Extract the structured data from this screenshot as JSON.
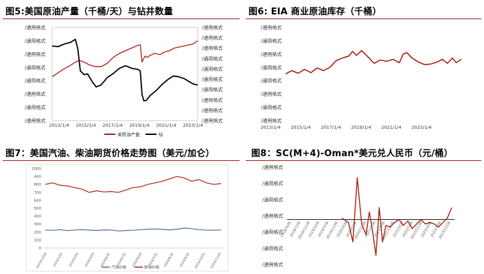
{
  "figures": {
    "fig5_title": "图5:美国原油产量（千桶/天）与钻井数量",
    "fig6_title": "图6: EIA 商业原油库存（千桶）",
    "fig7_title": "图7：美国汽油、柴油期货价格走势图（美元/加仑）",
    "fig8_title": "图8：SC(M+4)-Oman*美元兑人民币（元/桶）"
  },
  "colors": {
    "red": "#a81f0f",
    "black": "#000000",
    "blue": "#4a6d9a",
    "rule": "#9a1a1a"
  },
  "chart_data": [
    {
      "id": "fig5",
      "type": "line",
      "title": "图5:美国原油产量（千桶/天）与钻井数量",
      "x_ticks": [
        "2013/1/4",
        "2015/1/4",
        "2017/1/4",
        "2019/1/4",
        "2021/1/4",
        "2023/1/4"
      ],
      "left_tick_labels": [
        "/通用格式",
        "/通用格式",
        "/通用格式",
        "/通用格式",
        "/通用格式",
        "/通用格式",
        "/通用格式",
        "/通用格式"
      ],
      "right_tick_labels": [
        "/通用格式",
        "/通用格式",
        "/通用格式",
        "/通用格式",
        "/通用格式",
        "/通用格式",
        "/通用格式",
        "/通用格式",
        "/通用格式",
        "/通用格式"
      ],
      "legend": [
        "美原油产量",
        "钻"
      ],
      "xlim": [
        2013.0,
        2024.9
      ],
      "ylim_left": [
        0,
        7
      ],
      "ylim_right": [
        0,
        9
      ],
      "series": [
        {
          "name": "美原油产量",
          "axis": "left",
          "color": "#a81f0f",
          "x": [
            2013.0,
            2013.5,
            2014.0,
            2014.5,
            2015.0,
            2015.3,
            2015.7,
            2016.0,
            2016.5,
            2017.0,
            2017.5,
            2018.0,
            2018.5,
            2019.0,
            2019.5,
            2020.0,
            2020.2,
            2020.35,
            2020.45,
            2020.6,
            2020.8,
            2021.0,
            2021.4,
            2021.8,
            2022.2,
            2022.6,
            2023.0,
            2023.5,
            2024.0,
            2024.5,
            2024.9
          ],
          "y": [
            3.3,
            3.6,
            3.9,
            4.15,
            4.45,
            4.5,
            4.35,
            4.2,
            4.05,
            4.05,
            4.3,
            4.75,
            5.05,
            5.25,
            5.45,
            5.65,
            5.7,
            4.4,
            4.6,
            4.85,
            4.75,
            4.9,
            5.05,
            4.95,
            5.15,
            5.25,
            5.45,
            5.55,
            5.65,
            5.75,
            6.0
          ]
        },
        {
          "name": "钻",
          "axis": "right",
          "color": "#000000",
          "x": [
            2013.0,
            2013.5,
            2014.0,
            2014.5,
            2014.9,
            2015.1,
            2015.3,
            2015.6,
            2015.9,
            2016.3,
            2016.6,
            2017.0,
            2017.5,
            2018.0,
            2018.5,
            2019.0,
            2019.5,
            2020.0,
            2020.2,
            2020.35,
            2020.5,
            2020.7,
            2021.0,
            2021.5,
            2022.0,
            2022.5,
            2022.9,
            2023.3,
            2023.8,
            2024.2,
            2024.6,
            2024.9
          ],
          "y": [
            7.2,
            7.15,
            7.4,
            7.55,
            7.85,
            6.9,
            4.8,
            4.45,
            4.5,
            3.7,
            3.25,
            3.45,
            4.15,
            4.55,
            5.05,
            5.3,
            5.05,
            4.95,
            4.8,
            2.5,
            1.9,
            1.95,
            2.4,
            2.9,
            3.5,
            4.0,
            4.3,
            4.25,
            4.05,
            3.75,
            3.5,
            3.45
          ]
        }
      ]
    },
    {
      "id": "fig6",
      "type": "line",
      "title": "图6: EIA 商业原油库存（千桶）",
      "x_ticks": [
        "2013/1/4",
        "2015/1/4",
        "2017/1/4",
        "2019/1/4",
        "2021/1/4",
        "2023/1/4"
      ],
      "left_tick_labels": [
        "/通用格式",
        "/通用格式",
        "/通用格式",
        "/通用格式",
        "/通用格式",
        "/通用格式",
        "/通用格式",
        "/通用格式"
      ],
      "xlim": [
        2011.0,
        2024.9
      ],
      "ylim": [
        0,
        7
      ],
      "series": [
        {
          "name": "",
          "color": "#a81f0f",
          "x": [
            2011.0,
            2011.5,
            2012.0,
            2012.5,
            2013.0,
            2013.5,
            2014.0,
            2014.5,
            2015.0,
            2015.5,
            2016.0,
            2016.3,
            2016.6,
            2017.0,
            2017.3,
            2017.6,
            2018.0,
            2018.5,
            2019.0,
            2019.5,
            2020.0,
            2020.3,
            2020.6,
            2021.0,
            2021.5,
            2022.0,
            2022.5,
            2023.0,
            2023.4,
            2023.8,
            2024.2,
            2024.5,
            2024.9
          ],
          "y": [
            3.5,
            3.75,
            3.55,
            3.85,
            3.6,
            3.95,
            3.75,
            4.0,
            4.5,
            4.7,
            4.85,
            5.2,
            4.9,
            5.25,
            5.0,
            4.7,
            4.3,
            4.55,
            4.45,
            4.6,
            4.35,
            5.0,
            5.1,
            4.7,
            4.4,
            4.2,
            4.25,
            4.4,
            4.6,
            4.3,
            4.7,
            4.35,
            4.6
          ]
        }
      ]
    },
    {
      "id": "fig7",
      "type": "line",
      "title": "图7：美国汽油、柴油期货价格走势图（美元/加仑）",
      "yticks": [
        "0",
        "100",
        "200",
        "300",
        "400",
        "500",
        "600",
        "700",
        "800",
        "900",
        "1000"
      ],
      "x_tick_labels": [
        "2023/12/28",
        "2024/1/26",
        "2024/2/28",
        "2024/3/28",
        "2024/4/30",
        "2024/5/31",
        "2024/6/28",
        "2024/7/31",
        "2024/8/30",
        "2024/9/30",
        "2024/10/31",
        "2024/11/29"
      ],
      "legend": [
        "汽油价格",
        "柴油价格"
      ],
      "ylim": [
        0,
        1000
      ],
      "series": [
        {
          "name": "汽油价格",
          "color": "#4a6d9a",
          "x": [
            0,
            1,
            2,
            3,
            4,
            5,
            6,
            7,
            8,
            9,
            10,
            11,
            12,
            13,
            14,
            15,
            16,
            17,
            18,
            19,
            20,
            21,
            22,
            23,
            24
          ],
          "y": [
            225,
            222,
            230,
            218,
            226,
            232,
            224,
            220,
            228,
            226,
            214,
            220,
            222,
            230,
            236,
            240,
            234,
            228,
            236,
            250,
            244,
            230,
            226,
            224,
            226
          ]
        },
        {
          "name": "柴油价格",
          "color": "#a81f0f",
          "x": [
            0,
            1,
            2,
            3,
            4,
            5,
            6,
            7,
            8,
            9,
            10,
            11,
            12,
            13,
            14,
            15,
            16,
            17,
            18,
            19,
            20,
            21,
            22,
            23,
            24
          ],
          "y": [
            800,
            820,
            790,
            780,
            760,
            740,
            700,
            720,
            705,
            710,
            700,
            730,
            760,
            770,
            800,
            820,
            840,
            870,
            900,
            880,
            840,
            860,
            820,
            800,
            810
          ]
        }
      ]
    },
    {
      "id": "fig8",
      "type": "line",
      "title": "图8：SC(M+4)-Oman*美元兑人民币（元/桶）",
      "left_tick_labels": [
        "/通用格式",
        "/通用格式",
        "/通用格式",
        "/通用格式",
        "/通用格式",
        "/通用格式",
        "/通用格式"
      ],
      "x_tick_labels": [
        "2018/3/26",
        "2018/7/26",
        "2018/11/26",
        "2019/3/26",
        "2019/7/26",
        "2019/11/26",
        "2020/3/26",
        "2020/7/26",
        "2020/11/26",
        "2021/3/26",
        "2021/7/26",
        "2021/11/26",
        "2022/3/26",
        "2022/7/26",
        "2022/11/26",
        "2023/3/26",
        "2023/7/26",
        "2023/11/26"
      ],
      "ylim": [
        -3,
        3.5
      ],
      "series": [
        {
          "name": "",
          "color": "#a81f0f",
          "x": [
            0,
            0.6,
            1.0,
            1.4,
            1.8,
            2.2,
            2.5,
            2.8,
            3.1,
            3.4,
            3.7,
            4.0,
            4.4,
            4.8,
            5.2,
            5.6,
            6.0,
            6.4,
            6.8,
            7.2,
            7.6,
            8.0,
            8.4,
            8.8,
            9.2,
            9.6,
            10.0
          ],
          "y": [
            0.1,
            -0.2,
            -1.5,
            2.8,
            -0.3,
            -1.0,
            0.5,
            -0.8,
            -2.4,
            0.8,
            -1.5,
            -0.4,
            -0.5,
            -0.2,
            0.0,
            -0.4,
            -0.1,
            -0.6,
            -0.3,
            0.0,
            -0.3,
            -0.2,
            -0.3,
            -0.5,
            -0.2,
            0.1,
            0.8
          ]
        }
      ]
    }
  ]
}
